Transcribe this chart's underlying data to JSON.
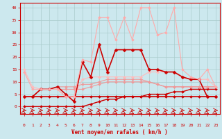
{
  "xlabel": "Vent moyen/en rafales ( km/h )",
  "background_color": "#cce8ee",
  "grid_color": "#aacccc",
  "xlim": [
    -0.5,
    23.5
  ],
  "ylim": [
    -3,
    42
  ],
  "yticks": [
    0,
    5,
    10,
    15,
    20,
    25,
    30,
    35,
    40
  ],
  "xticks": [
    0,
    1,
    2,
    3,
    4,
    5,
    6,
    7,
    8,
    9,
    10,
    11,
    12,
    13,
    14,
    15,
    16,
    17,
    18,
    19,
    20,
    21,
    22,
    23
  ],
  "series": [
    {
      "x": [
        0,
        1,
        2,
        3,
        4,
        5,
        6,
        7,
        8,
        9,
        10,
        11,
        12,
        13,
        14,
        15,
        16,
        17,
        18,
        19,
        20,
        21,
        22,
        23
      ],
      "y": [
        4,
        4,
        4,
        4,
        4,
        4,
        4,
        4,
        4,
        4,
        4,
        4,
        4,
        4,
        4,
        4,
        4,
        4,
        4,
        4,
        4,
        4,
        4,
        4
      ],
      "color": "#cc0000",
      "linewidth": 1.2,
      "marker": "D",
      "markersize": 2.0
    },
    {
      "x": [
        0,
        1,
        2,
        3,
        4,
        5,
        6,
        7,
        8,
        9,
        10,
        11,
        12,
        13,
        14,
        15,
        16,
        17,
        18,
        19,
        20,
        21,
        22,
        23
      ],
      "y": [
        0,
        0,
        0,
        0,
        0,
        0,
        0,
        0,
        1,
        2,
        3,
        3,
        4,
        4,
        4,
        5,
        5,
        5,
        6,
        6,
        7,
        7,
        7,
        7
      ],
      "color": "#cc0000",
      "linewidth": 1.0,
      "marker": "D",
      "markersize": 2.0
    },
    {
      "x": [
        0,
        1,
        2,
        3,
        4,
        5,
        6,
        7,
        8,
        9,
        10,
        11,
        12,
        13,
        14,
        15,
        16,
        17,
        18,
        19,
        20,
        21,
        22,
        23
      ],
      "y": [
        4,
        4,
        7,
        7,
        7,
        7,
        7,
        7,
        8,
        9,
        10,
        10,
        10,
        10,
        10,
        10,
        9,
        8,
        8,
        8,
        8,
        8,
        8,
        8
      ],
      "color": "#ee9999",
      "linewidth": 0.8,
      "marker": "D",
      "markersize": 2.0
    },
    {
      "x": [
        0,
        1,
        2,
        3,
        4,
        5,
        6,
        7,
        8,
        9,
        10,
        11,
        12,
        13,
        14,
        15,
        16,
        17,
        18,
        19,
        20,
        21,
        22,
        23
      ],
      "y": [
        4,
        4,
        7,
        7,
        8,
        8,
        8,
        9,
        9,
        10,
        11,
        11,
        11,
        11,
        11,
        10,
        9,
        8,
        8,
        8,
        8,
        8,
        8,
        8
      ],
      "color": "#ee9999",
      "linewidth": 0.8,
      "marker": "D",
      "markersize": 2.0
    },
    {
      "x": [
        0,
        1,
        2,
        3,
        4,
        5,
        6,
        7,
        8,
        9,
        10,
        11,
        12,
        13,
        14,
        15,
        16,
        17,
        18,
        19,
        20,
        21,
        22,
        23
      ],
      "y": [
        15,
        8,
        7,
        7,
        7,
        4,
        4,
        11,
        12,
        12,
        12,
        12,
        12,
        12,
        12,
        14,
        14,
        14,
        14,
        12,
        11,
        11,
        11,
        8
      ],
      "color": "#ffbbbb",
      "linewidth": 0.8,
      "marker": "D",
      "markersize": 2.0
    },
    {
      "x": [
        0,
        1,
        2,
        3,
        4,
        5,
        6,
        7,
        8,
        9,
        10,
        11,
        12,
        13,
        14,
        15,
        16,
        17,
        18,
        19,
        20,
        21,
        22,
        23
      ],
      "y": [
        4,
        4,
        7,
        7,
        8,
        5,
        2,
        18,
        12,
        25,
        14,
        23,
        23,
        23,
        23,
        15,
        15,
        14,
        14,
        12,
        11,
        11,
        4,
        4
      ],
      "color": "#cc0000",
      "linewidth": 1.2,
      "marker": "D",
      "markersize": 2.5
    },
    {
      "x": [
        0,
        1,
        2,
        3,
        4,
        5,
        6,
        7,
        8,
        9,
        10,
        11,
        12,
        13,
        14,
        15,
        16,
        17,
        18,
        19,
        20,
        21,
        22,
        23
      ],
      "y": [
        14,
        7,
        7,
        7,
        7,
        4,
        4,
        19,
        18,
        36,
        36,
        27,
        36,
        27,
        40,
        40,
        29,
        30,
        40,
        15,
        12,
        11,
        15,
        8
      ],
      "color": "#ffaaaa",
      "linewidth": 0.8,
      "marker": "D",
      "markersize": 2.0
    }
  ]
}
